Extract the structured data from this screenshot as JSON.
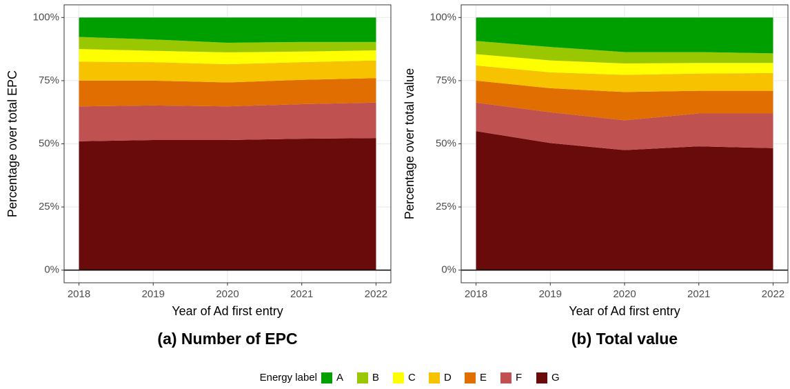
{
  "legend_title": "Energy label",
  "chart_data": [
    {
      "type": "area",
      "stacked": true,
      "caption": "(a) Number of EPC",
      "x_label": "Year of Ad first entry",
      "y_label": "Percentage over total EPC",
      "x": [
        2018,
        2019,
        2020,
        2021,
        2022
      ],
      "xlim": [
        2017.8,
        2022.2
      ],
      "xticks": [
        2018,
        2019,
        2020,
        2021,
        2022
      ],
      "ylim": [
        -5,
        105
      ],
      "yticks": [
        {
          "value": 0,
          "label": "0%"
        },
        {
          "value": 25,
          "label": "25%"
        },
        {
          "value": 50,
          "label": "50%"
        },
        {
          "value": 75,
          "label": "75%"
        },
        {
          "value": 100,
          "label": "100%"
        }
      ],
      "grid": true,
      "series": [
        {
          "name": "A",
          "color": "#009f00",
          "values": [
            7.7,
            8.7,
            10,
            9.7,
            9.7
          ]
        },
        {
          "name": "B",
          "color": "#99c800",
          "values": [
            4.8,
            4.5,
            3.8,
            3.8,
            3.3
          ]
        },
        {
          "name": "C",
          "color": "#ffff00",
          "values": [
            5,
            4.5,
            4.7,
            4.2,
            4
          ]
        },
        {
          "name": "D",
          "color": "#f7c300",
          "values": [
            7.5,
            7.3,
            7.2,
            7,
            7
          ]
        },
        {
          "name": "E",
          "color": "#e06e00",
          "values": [
            10.2,
            9.8,
            9.5,
            9.6,
            9.7
          ]
        },
        {
          "name": "F",
          "color": "#c05151",
          "values": [
            13.8,
            13.7,
            13.3,
            13.7,
            14
          ]
        },
        {
          "name": "G",
          "color": "#690b0b",
          "values": [
            51,
            51.5,
            51.5,
            52,
            52.3
          ]
        }
      ]
    },
    {
      "type": "area",
      "stacked": true,
      "caption": "(b) Total value",
      "x_label": "Year of Ad first entry",
      "y_label": "Percentage over total value",
      "x": [
        2018,
        2019,
        2020,
        2021,
        2022
      ],
      "xlim": [
        2017.8,
        2022.2
      ],
      "xticks": [
        2018,
        2019,
        2020,
        2021,
        2022
      ],
      "ylim": [
        -5,
        105
      ],
      "yticks": [
        {
          "value": 0,
          "label": "0%"
        },
        {
          "value": 25,
          "label": "25%"
        },
        {
          "value": 50,
          "label": "50%"
        },
        {
          "value": 75,
          "label": "75%"
        },
        {
          "value": 100,
          "label": "100%"
        }
      ],
      "grid": true,
      "series": [
        {
          "name": "A",
          "color": "#009f00",
          "values": [
            9.3,
            11.7,
            13.7,
            13.7,
            14.2
          ]
        },
        {
          "name": "B",
          "color": "#99c800",
          "values": [
            5.2,
            5.3,
            4.5,
            4.3,
            3.8
          ]
        },
        {
          "name": "C",
          "color": "#ffff00",
          "values": [
            4.5,
            4.7,
            4.5,
            4.2,
            4
          ]
        },
        {
          "name": "D",
          "color": "#f7c300",
          "values": [
            6,
            6.3,
            6.8,
            6.8,
            7
          ]
        },
        {
          "name": "E",
          "color": "#e06e00",
          "values": [
            8.7,
            9.5,
            11.2,
            9,
            9
          ]
        },
        {
          "name": "F",
          "color": "#c05151",
          "values": [
            11.3,
            12.2,
            11.8,
            13,
            13.7
          ]
        },
        {
          "name": "G",
          "color": "#690b0b",
          "values": [
            55,
            50.3,
            47.5,
            49,
            48.3
          ]
        }
      ]
    }
  ]
}
